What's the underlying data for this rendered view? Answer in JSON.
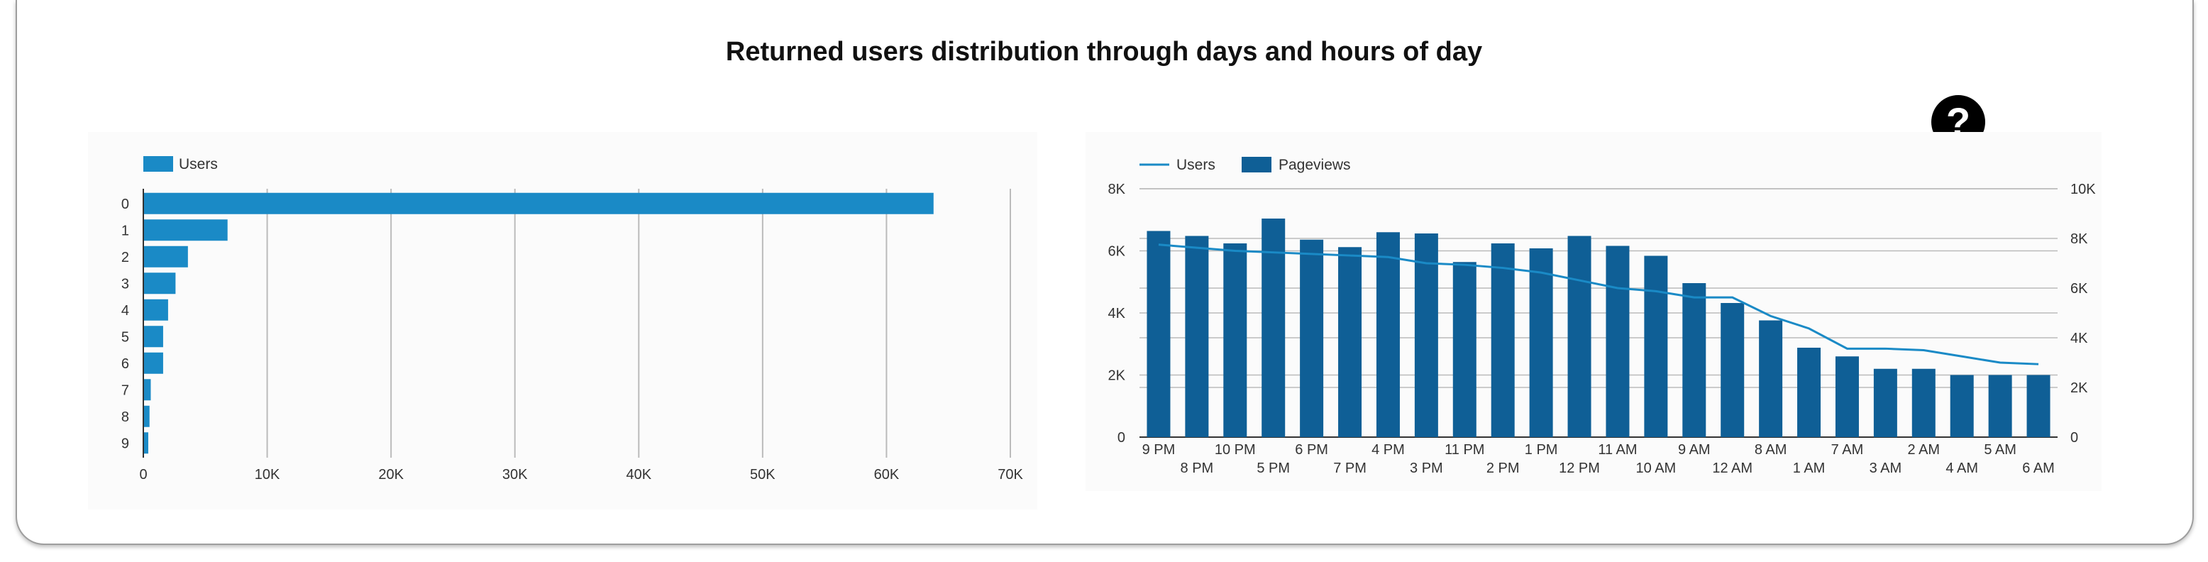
{
  "title": "Returned users distribution through days and hours of day",
  "help_icon": {
    "icon": "question-mark-icon",
    "label": "?"
  },
  "colors": {
    "users_bar": "#1a8ac6",
    "pageviews_bar": "#0f5f96",
    "users_line": "#1a8ac6",
    "grid": "#bbbbbb"
  },
  "chart_data": [
    {
      "type": "bar",
      "orientation": "horizontal",
      "legend": [
        "Users"
      ],
      "legend_position": "top-left",
      "categories": [
        "0",
        "1",
        "2",
        "3",
        "4",
        "5",
        "6",
        "7",
        "8",
        "9"
      ],
      "series": [
        {
          "name": "Users",
          "values": [
            63800,
            6800,
            3600,
            2600,
            2000,
            1600,
            1600,
            600,
            500,
            400
          ]
        }
      ],
      "xlim": [
        0,
        70000
      ],
      "xticks": [
        0,
        10000,
        20000,
        30000,
        40000,
        50000,
        60000,
        70000
      ],
      "xtick_labels": [
        "0",
        "10K",
        "20K",
        "30K",
        "40K",
        "50K",
        "60K",
        "70K"
      ],
      "grid": true
    },
    {
      "type": "bar",
      "combo": "bar+line",
      "legend": [
        "Users",
        "Pageviews"
      ],
      "legend_position": "top-left",
      "categories": [
        "9 PM",
        "8 PM",
        "10 PM",
        "5 PM",
        "6 PM",
        "7 PM",
        "4 PM",
        "3 PM",
        "11 PM",
        "2 PM",
        "1 PM",
        "12 PM",
        "11 AM",
        "10 AM",
        "9 AM",
        "12 AM",
        "8 AM",
        "1 AM",
        "7 AM",
        "3 AM",
        "2 AM",
        "4 AM",
        "5 AM",
        "6 AM"
      ],
      "series": [
        {
          "name": "Pageviews",
          "axis": "right",
          "chart": "bar",
          "values": [
            8300,
            8100,
            7800,
            8800,
            7950,
            7650,
            8250,
            8200,
            7050,
            7800,
            7600,
            8100,
            7700,
            7300,
            6200,
            5400,
            4700,
            3600,
            3250,
            2750,
            2750,
            2500,
            2500,
            2500
          ]
        },
        {
          "name": "Users",
          "axis": "left",
          "chart": "line",
          "values": [
            6200,
            6100,
            6000,
            5950,
            5900,
            5850,
            5800,
            5600,
            5550,
            5450,
            5300,
            5050,
            4800,
            4700,
            4500,
            4500,
            3900,
            3500,
            2850,
            2850,
            2800,
            2600,
            2400,
            2350
          ]
        }
      ],
      "ylim_left": [
        0,
        8000
      ],
      "yticks_left": [
        "0",
        "2K",
        "4K",
        "6K",
        "8K"
      ],
      "ylim_right": [
        0,
        10000
      ],
      "yticks_right": [
        "0",
        "2K",
        "4K",
        "6K",
        "8K",
        "10K"
      ],
      "grid": true
    }
  ]
}
